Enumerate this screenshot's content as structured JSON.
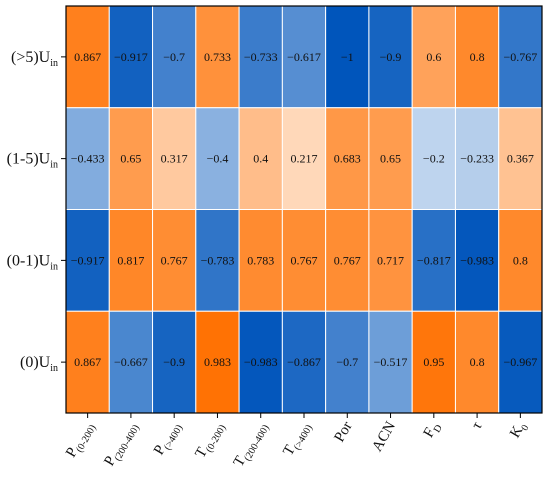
{
  "chart_data": {
    "type": "heatmap",
    "title": "",
    "xlabel": "",
    "ylabel": "",
    "rows": [
      {
        "base": "(>5)U",
        "sub": "in"
      },
      {
        "base": "(1-5)U",
        "sub": "in"
      },
      {
        "base": "(0-1)U",
        "sub": "in"
      },
      {
        "base": "(0)U",
        "sub": "in"
      }
    ],
    "columns": [
      {
        "base": "P",
        "sub": "(0-200)"
      },
      {
        "base": "P",
        "sub": "(200-400)"
      },
      {
        "base": "P",
        "sub": "(>400)"
      },
      {
        "base": "T",
        "sub": "(0-200)"
      },
      {
        "base": "T",
        "sub": "(200-400)"
      },
      {
        "base": "T",
        "sub": "(>400)"
      },
      {
        "base": "Por",
        "sub": ""
      },
      {
        "base": "ACN",
        "sub": ""
      },
      {
        "base": "F",
        "sub": "D"
      },
      {
        "base": "τ",
        "sub": ""
      },
      {
        "base": "K",
        "sub": "0"
      }
    ],
    "values": [
      [
        0.867,
        -0.917,
        -0.7,
        0.733,
        -0.733,
        -0.617,
        -1,
        -0.9,
        0.6,
        0.8,
        -0.767
      ],
      [
        -0.433,
        0.65,
        0.317,
        -0.4,
        0.4,
        0.217,
        0.683,
        0.65,
        -0.2,
        -0.233,
        0.367
      ],
      [
        -0.917,
        0.817,
        0.767,
        -0.783,
        0.783,
        0.767,
        0.767,
        0.717,
        -0.817,
        -0.983,
        0.8
      ],
      [
        0.867,
        -0.667,
        -0.9,
        0.983,
        -0.983,
        -0.867,
        -0.7,
        -0.517,
        0.95,
        0.8,
        -0.967
      ]
    ],
    "labels": [
      [
        "0.867",
        "−0.917",
        "−0.7",
        "0.733",
        "−0.733",
        "−0.617",
        "−1",
        "−0.9",
        "0.6",
        "0.8",
        "−0.767"
      ],
      [
        "−0.433",
        "0.65",
        "0.317",
        "−0.4",
        "0.4",
        "0.217",
        "0.683",
        "0.65",
        "−0.2",
        "−0.233",
        "0.367"
      ],
      [
        "−0.917",
        "0.817",
        "0.767",
        "−0.783",
        "0.783",
        "0.767",
        "0.767",
        "0.717",
        "−0.817",
        "−0.983",
        "0.8"
      ],
      [
        "0.867",
        "−0.667",
        "−0.9",
        "0.983",
        "−0.983",
        "−0.867",
        "−0.7",
        "−0.517",
        "0.95",
        "0.8",
        "−0.967"
      ]
    ],
    "value_range": [
      -1,
      1
    ],
    "colors": {
      "positive": "#ff7000",
      "negative": "#0055bb",
      "neutral": "#ffffff"
    },
    "grid": false,
    "legend": "none"
  }
}
